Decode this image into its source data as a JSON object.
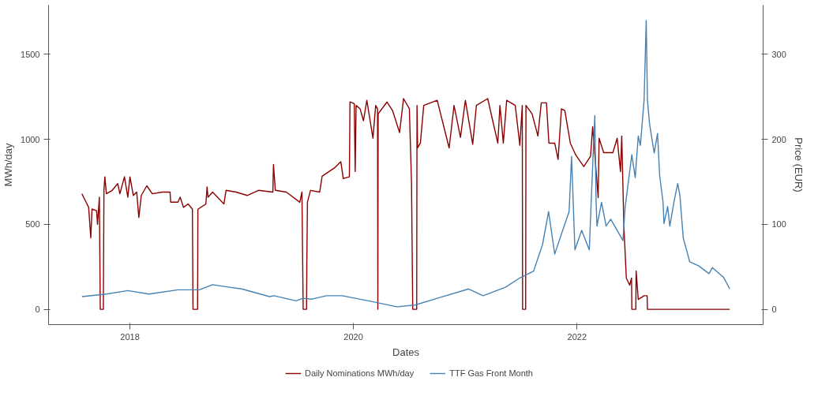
{
  "chart_data": {
    "type": "line",
    "xlabel": "Dates",
    "ylabel": "MWh/day",
    "y2label": "Price (EUR)",
    "xlim": [
      "2017-04-10",
      "2023-09-01"
    ],
    "xticks": [
      "2018",
      "2020",
      "2022"
    ],
    "ylim": [
      -90,
      1790
    ],
    "yticks": [
      0,
      500,
      1000,
      1500
    ],
    "y2lim": [
      -18,
      358
    ],
    "y2ticks": [
      0,
      100,
      200,
      300
    ],
    "grid": false,
    "legend": "bottom",
    "line_style": "solid",
    "series": [
      {
        "name": "Daily Nominations MWh/day",
        "color": "#8b0000",
        "x": [
          "2017-07-28",
          "2017-08-08",
          "2017-08-19",
          "2017-08-26",
          "2017-08-30",
          "2017-09-14",
          "2017-09-17",
          "2017-09-23",
          "2017-09-26",
          "2017-10-06",
          "2017-10-08",
          "2017-10-11",
          "2017-10-16",
          "2017-11-04",
          "2017-11-22",
          "2017-11-29",
          "2017-12-14",
          "2017-12-25",
          "2018-01-01",
          "2018-01-12",
          "2018-01-23",
          "2018-01-30",
          "2018-02-07",
          "2018-02-25",
          "2018-03-15",
          "2018-04-17",
          "2018-05-12",
          "2018-05-14",
          "2018-06-07",
          "2018-06-14",
          "2018-06-25",
          "2018-07-10",
          "2018-07-24",
          "2018-07-26",
          "2018-08-10",
          "2018-08-11",
          "2018-09-06",
          "2018-09-10",
          "2018-09-13",
          "2018-09-28",
          "2018-11-04",
          "2018-11-11",
          "2018-12-14",
          "2019-01-19",
          "2019-02-25",
          "2019-04-13",
          "2019-04-15",
          "2019-04-21",
          "2019-05-27",
          "2019-07-10",
          "2019-07-17",
          "2019-07-21",
          "2019-08-01",
          "2019-08-02",
          "2019-08-04",
          "2019-08-14",
          "2019-09-13",
          "2019-09-21",
          "2019-10-31",
          "2019-11-21",
          "2019-11-29",
          "2019-12-19",
          "2019-12-21",
          "2020-01-04",
          "2020-01-07",
          "2020-01-10",
          "2020-01-23",
          "2020-02-03",
          "2020-02-14",
          "2020-03-05",
          "2020-03-14",
          "2020-03-20",
          "2020-03-21",
          "2020-03-22",
          "2020-04-20",
          "2020-05-08",
          "2020-05-31",
          "2020-06-13",
          "2020-07-02",
          "2020-07-09",
          "2020-07-13",
          "2020-07-26",
          "2020-07-27",
          "2020-07-29",
          "2020-08-07",
          "2020-08-18",
          "2020-10-01",
          "2020-11-09",
          "2020-11-25",
          "2020-12-16",
          "2021-01-01",
          "2021-01-25",
          "2021-02-06",
          "2021-03-15",
          "2021-04-17",
          "2021-04-24",
          "2021-05-05",
          "2021-05-16",
          "2021-06-13",
          "2021-06-28",
          "2021-07-06",
          "2021-07-07",
          "2021-07-17",
          "2021-07-18",
          "2021-08-07",
          "2021-08-26",
          "2021-09-06",
          "2021-09-23",
          "2021-10-01",
          "2021-10-20",
          "2021-10-31",
          "2021-11-11",
          "2021-11-22",
          "2021-12-10",
          "2021-12-28",
          "2022-01-23",
          "2022-02-14",
          "2022-02-21",
          "2022-03-11",
          "2022-03-14",
          "2022-03-29",
          "2022-04-28",
          "2022-05-12",
          "2022-05-23",
          "2022-05-27",
          "2022-06-03",
          "2022-06-11",
          "2022-06-22",
          "2022-06-28",
          "2022-06-29",
          "2022-07-12",
          "2022-07-13",
          "2022-07-20",
          "2022-08-08",
          "2022-08-18",
          "2022-08-19",
          "2023-05-15"
        ],
        "values": [
          680,
          640,
          600,
          420,
          590,
          580,
          500,
          660,
          0,
          0,
          700,
          780,
          680,
          700,
          740,
          680,
          780,
          660,
          780,
          670,
          690,
          540,
          670,
          727,
          680,
          690,
          690,
          631,
          631,
          660,
          600,
          620,
          590,
          0,
          0,
          589,
          620,
          720,
          660,
          690,
          620,
          700,
          690,
          670,
          700,
          690,
          852,
          700,
          690,
          630,
          690,
          0,
          0,
          270,
          631,
          700,
          690,
          783,
          832,
          869,
          769,
          780,
          1221,
          1210,
          811,
          1200,
          1180,
          1110,
          1230,
          1007,
          1200,
          1180,
          0,
          1150,
          1220,
          1170,
          1040,
          1240,
          1180,
          748,
          0,
          0,
          1200,
          950,
          978,
          1200,
          1230,
          950,
          1200,
          1012,
          1230,
          971,
          1200,
          1240,
          978,
          1200,
          978,
          1230,
          1200,
          965,
          1200,
          0,
          0,
          1200,
          1150,
          1020,
          1215,
          1215,
          978,
          978,
          882,
          1180,
          1170,
          978,
          907,
          840,
          900,
          1074,
          657,
          1007,
          922,
          922,
          1007,
          810,
          1020,
          490,
          184,
          142,
          184,
          0,
          0,
          226,
          58,
          80,
          80,
          0,
          0
        ]
      },
      {
        "name": "TTF Gas Front Month",
        "color": "#4682b4",
        "axis": "y2",
        "x": [
          "2017-07-28",
          "2017-10-16",
          "2017-12-25",
          "2018-03-04",
          "2018-06-07",
          "2018-08-15",
          "2018-09-28",
          "2018-11-22",
          "2019-01-01",
          "2019-04-02",
          "2019-04-17",
          "2019-06-28",
          "2019-07-20",
          "2019-08-19",
          "2019-10-05",
          "2019-11-26",
          "2020-03-03",
          "2020-05-22",
          "2020-07-20",
          "2020-10-01",
          "2021-01-12",
          "2021-02-28",
          "2021-05-12",
          "2021-06-28",
          "2021-08-12",
          "2021-09-10",
          "2021-09-30",
          "2021-10-20",
          "2021-11-15",
          "2021-12-06",
          "2021-12-14",
          "2021-12-25",
          "2022-01-16",
          "2022-02-10",
          "2022-02-17",
          "2022-02-28",
          "2022-03-04",
          "2022-03-07",
          "2022-03-22",
          "2022-04-06",
          "2022-04-21",
          "2022-05-31",
          "2022-06-07",
          "2022-06-29",
          "2022-07-10",
          "2022-07-20",
          "2022-07-27",
          "2022-08-08",
          "2022-08-15",
          "2022-08-19",
          "2022-08-26",
          "2022-09-10",
          "2022-09-21",
          "2022-09-28",
          "2022-10-09",
          "2022-10-12",
          "2022-10-24",
          "2022-10-31",
          "2022-11-15",
          "2022-11-26",
          "2022-12-03",
          "2022-12-14",
          "2023-01-04",
          "2023-02-03",
          "2023-03-08",
          "2023-03-19",
          "2023-04-24",
          "2023-05-15"
        ],
        "values": [
          15,
          18,
          22,
          18,
          23,
          23,
          29,
          26,
          24,
          15,
          16,
          10,
          13,
          12,
          16,
          16,
          9,
          3,
          5,
          13,
          24,
          16,
          26,
          37,
          45,
          76,
          115,
          65,
          93,
          115,
          180,
          70,
          93,
          70,
          134,
          228,
          129,
          98,
          126,
          98,
          106,
          81,
          120,
          182,
          155,
          204,
          193,
          246,
          340,
          246,
          218,
          184,
          207,
          157,
          126,
          101,
          121,
          98,
          129,
          148,
          134,
          84,
          56,
          51,
          42,
          49,
          38,
          24
        ]
      }
    ]
  }
}
